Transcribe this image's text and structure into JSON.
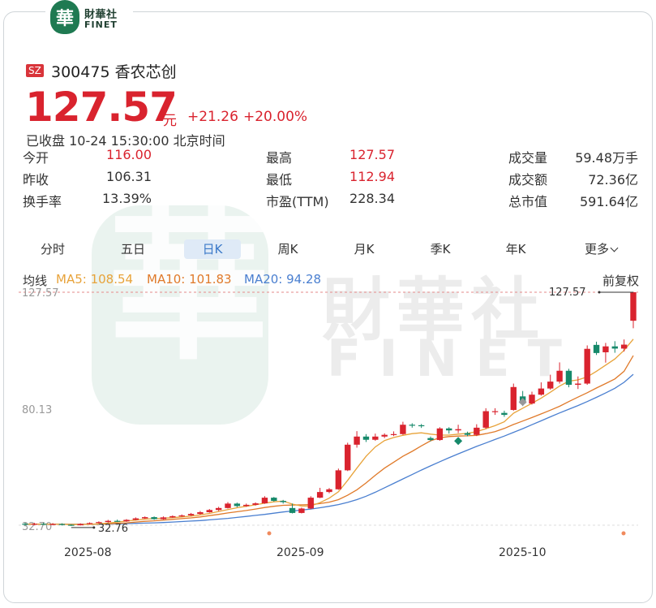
{
  "brand": {
    "mark": "華",
    "name_cn": "財華社",
    "name_en": "FINET",
    "watermark_cn": "財華社",
    "watermark_en": "FINET"
  },
  "stock": {
    "exchange": "SZ",
    "code": "300475",
    "name": "香农芯创",
    "title": "300475 香农芯创"
  },
  "quote": {
    "price": "127.57",
    "unit": "元",
    "change": "+21.26",
    "change_pct": "+20.00%",
    "status": "已收盘 10-24 15:30:00 北京时间"
  },
  "stats": {
    "col1": [
      {
        "label": "今开",
        "value": "116.00"
      },
      {
        "label": "昨收",
        "value": "106.31"
      },
      {
        "label": "换手率",
        "value": "13.39%"
      }
    ],
    "col2": [
      {
        "label": "最高",
        "value": "127.57"
      },
      {
        "label": "最低",
        "value": "112.94"
      },
      {
        "label": "市盈(TTM)",
        "value": "228.34"
      }
    ],
    "col3": [
      {
        "label": "成交量",
        "value": "59.48万手"
      },
      {
        "label": "成交额",
        "value": "72.36亿"
      },
      {
        "label": "总市值",
        "value": "591.64亿"
      }
    ]
  },
  "tabs": [
    "分时",
    "五日",
    "日K",
    "周K",
    "月K",
    "季K",
    "年K",
    "更多"
  ],
  "active_tab": "日K",
  "ma": {
    "label": "均线",
    "ma5": "MA5: 108.54",
    "ma10": "MA10: 101.83",
    "ma20": "MA20: 94.28",
    "adjust": "前复权"
  },
  "colors": {
    "up": "#d9232e",
    "down": "#16896a",
    "ma5": "#e8a33a",
    "ma10": "#e07a2a",
    "ma20": "#4a7fd0"
  },
  "chart_data": {
    "type": "candlestick",
    "y_ticks": [
      "127.57",
      "80.13",
      "32.70"
    ],
    "x_ticks": [
      "2025-08",
      "2025-09",
      "2025-10"
    ],
    "high_marker": "127.57",
    "low_marker": "32.76",
    "ylim": [
      32.7,
      127.57
    ],
    "candles": [
      {
        "o": 33.6,
        "c": 33.3,
        "h": 34.0,
        "l": 33.0
      },
      {
        "o": 33.3,
        "c": 33.6,
        "h": 34.0,
        "l": 33.0
      },
      {
        "o": 33.6,
        "c": 33.4,
        "h": 34.0,
        "l": 33.1
      },
      {
        "o": 33.4,
        "c": 33.5,
        "h": 33.9,
        "l": 33.1
      },
      {
        "o": 33.5,
        "c": 33.2,
        "h": 33.8,
        "l": 32.9
      },
      {
        "o": 33.2,
        "c": 33.0,
        "h": 33.4,
        "l": 32.76
      },
      {
        "o": 33.0,
        "c": 33.5,
        "h": 33.8,
        "l": 32.9
      },
      {
        "o": 33.5,
        "c": 33.9,
        "h": 34.2,
        "l": 33.3
      },
      {
        "o": 33.9,
        "c": 34.3,
        "h": 34.6,
        "l": 33.7
      },
      {
        "o": 34.3,
        "c": 34.8,
        "h": 35.2,
        "l": 34.0
      },
      {
        "o": 34.8,
        "c": 34.6,
        "h": 35.3,
        "l": 34.3
      },
      {
        "o": 34.6,
        "c": 35.2,
        "h": 35.5,
        "l": 34.4
      },
      {
        "o": 35.2,
        "c": 35.8,
        "h": 36.2,
        "l": 35.0
      },
      {
        "o": 35.8,
        "c": 36.3,
        "h": 36.6,
        "l": 35.6
      },
      {
        "o": 36.3,
        "c": 35.5,
        "h": 36.6,
        "l": 35.2
      },
      {
        "o": 35.5,
        "c": 36.2,
        "h": 36.6,
        "l": 35.3
      },
      {
        "o": 36.2,
        "c": 36.7,
        "h": 37.0,
        "l": 36.0
      },
      {
        "o": 36.7,
        "c": 37.0,
        "h": 37.4,
        "l": 36.4
      },
      {
        "o": 37.0,
        "c": 37.6,
        "h": 38.0,
        "l": 36.8
      },
      {
        "o": 37.6,
        "c": 38.3,
        "h": 38.8,
        "l": 37.3
      },
      {
        "o": 38.3,
        "c": 39.2,
        "h": 39.6,
        "l": 38.1
      },
      {
        "o": 39.2,
        "c": 40.0,
        "h": 40.5,
        "l": 38.8
      },
      {
        "o": 40.0,
        "c": 41.8,
        "h": 42.4,
        "l": 39.8
      },
      {
        "o": 41.8,
        "c": 40.8,
        "h": 42.2,
        "l": 40.3
      },
      {
        "o": 40.8,
        "c": 41.3,
        "h": 41.8,
        "l": 40.5
      },
      {
        "o": 41.3,
        "c": 41.9,
        "h": 42.3,
        "l": 41.0
      },
      {
        "o": 41.9,
        "c": 44.2,
        "h": 44.8,
        "l": 41.7
      },
      {
        "o": 44.2,
        "c": 42.9,
        "h": 44.5,
        "l": 42.6
      },
      {
        "o": 42.9,
        "c": 42.4,
        "h": 43.3,
        "l": 41.8
      },
      {
        "o": 40.0,
        "c": 38.0,
        "h": 41.8,
        "l": 37.8
      },
      {
        "o": 38.0,
        "c": 39.8,
        "h": 40.2,
        "l": 37.8
      },
      {
        "o": 39.8,
        "c": 44.2,
        "h": 44.8,
        "l": 39.5
      },
      {
        "o": 44.2,
        "c": 46.5,
        "h": 48.2,
        "l": 44.0
      },
      {
        "o": 46.5,
        "c": 47.6,
        "h": 48.1,
        "l": 46.0
      },
      {
        "o": 47.6,
        "c": 55.3,
        "h": 56.0,
        "l": 47.4
      },
      {
        "o": 55.3,
        "c": 65.7,
        "h": 66.5,
        "l": 55.0
      },
      {
        "o": 65.7,
        "c": 69.0,
        "h": 71.2,
        "l": 64.5
      },
      {
        "o": 69.0,
        "c": 67.7,
        "h": 70.0,
        "l": 66.8
      },
      {
        "o": 67.7,
        "c": 69.0,
        "h": 70.2,
        "l": 67.3
      },
      {
        "o": 69.0,
        "c": 69.7,
        "h": 70.3,
        "l": 68.4
      },
      {
        "o": 69.7,
        "c": 70.0,
        "h": 71.1,
        "l": 69.2
      },
      {
        "o": 70.0,
        "c": 73.8,
        "h": 75.0,
        "l": 69.7
      },
      {
        "o": 73.8,
        "c": 73.6,
        "h": 74.4,
        "l": 72.6
      },
      {
        "o": 73.6,
        "c": 73.2,
        "h": 74.1,
        "l": 72.5
      },
      {
        "o": 68.4,
        "c": 67.6,
        "h": 69.0,
        "l": 67.1
      },
      {
        "o": 67.6,
        "c": 72.3,
        "h": 72.8,
        "l": 67.3
      },
      {
        "o": 72.3,
        "c": 71.5,
        "h": 72.8,
        "l": 70.2
      },
      {
        "o": 71.5,
        "c": 72.0,
        "h": 73.8,
        "l": 70.4
      },
      {
        "o": 70.4,
        "c": 69.7,
        "h": 71.0,
        "l": 69.1
      },
      {
        "o": 69.7,
        "c": 72.6,
        "h": 74.0,
        "l": 69.2
      },
      {
        "o": 72.6,
        "c": 79.3,
        "h": 80.5,
        "l": 72.1
      },
      {
        "o": 79.3,
        "c": 79.3,
        "h": 80.5,
        "l": 77.8
      },
      {
        "o": 78.6,
        "c": 77.8,
        "h": 79.5,
        "l": 77.0
      },
      {
        "o": 79.8,
        "c": 89.1,
        "h": 90.5,
        "l": 79.5
      },
      {
        "o": 85.3,
        "c": 82.4,
        "h": 87.5,
        "l": 81.4
      },
      {
        "o": 82.4,
        "c": 86.0,
        "h": 87.2,
        "l": 82.0
      },
      {
        "o": 86.0,
        "c": 88.5,
        "h": 91.0,
        "l": 85.6
      },
      {
        "o": 88.5,
        "c": 91.3,
        "h": 94.1,
        "l": 88.0
      },
      {
        "o": 91.3,
        "c": 95.7,
        "h": 99.1,
        "l": 90.5
      },
      {
        "o": 95.7,
        "c": 90.0,
        "h": 96.5,
        "l": 89.0
      },
      {
        "o": 90.0,
        "c": 90.5,
        "h": 93.4,
        "l": 88.3
      },
      {
        "o": 90.5,
        "c": 104.6,
        "h": 106.0,
        "l": 90.0
      },
      {
        "o": 106.2,
        "c": 102.9,
        "h": 107.5,
        "l": 102.1
      },
      {
        "o": 103.2,
        "c": 105.6,
        "h": 107.0,
        "l": 99.0
      },
      {
        "o": 105.6,
        "c": 104.7,
        "h": 107.7,
        "l": 103.0
      },
      {
        "o": 104.7,
        "c": 106.31,
        "h": 108.4,
        "l": 103.5
      },
      {
        "o": 116.0,
        "c": 127.57,
        "h": 127.57,
        "l": 112.94
      }
    ],
    "ma5": [
      33.4,
      33.5,
      33.4,
      33.4,
      33.4,
      33.3,
      33.3,
      33.4,
      33.6,
      33.9,
      34.3,
      34.7,
      35.1,
      35.5,
      35.7,
      35.9,
      36.1,
      36.4,
      36.7,
      37.2,
      37.8,
      38.6,
      39.4,
      40.1,
      40.7,
      41.3,
      42.0,
      42.5,
      42.8,
      41.6,
      40.8,
      40.8,
      42.2,
      44.0,
      46.6,
      51.2,
      56.2,
      61.0,
      64.8,
      67.4,
      68.6,
      69.5,
      70.2,
      70.5,
      70.0,
      69.6,
      69.6,
      70.0,
      70.3,
      71.0,
      72.2,
      73.4,
      75.0,
      78.5,
      80.5,
      82.5,
      84.6,
      87.0,
      89.5,
      91.5,
      92.0,
      93.2,
      95.5,
      98.0,
      100.5,
      104.0,
      108.54
    ],
    "ma10": [
      33.4,
      33.5,
      33.4,
      33.4,
      33.4,
      33.4,
      33.4,
      33.4,
      33.5,
      33.6,
      33.8,
      34.0,
      34.3,
      34.6,
      34.8,
      35.1,
      35.4,
      35.7,
      36.0,
      36.4,
      36.9,
      37.4,
      38.0,
      38.5,
      39.0,
      39.6,
      40.2,
      40.7,
      41.1,
      41.2,
      41.3,
      41.4,
      41.8,
      42.4,
      43.4,
      45.2,
      47.4,
      50.2,
      53.3,
      56.2,
      58.6,
      61.0,
      63.0,
      65.2,
      67.3,
      68.5,
      69.0,
      69.2,
      69.3,
      69.5,
      70.2,
      71.0,
      72.3,
      73.9,
      75.3,
      76.7,
      78.2,
      79.7,
      81.3,
      83.2,
      85.0,
      86.8,
      88.7,
      90.5,
      92.4,
      95.5,
      101.83
    ],
    "ma20": [
      33.4,
      33.4,
      33.4,
      33.4,
      33.4,
      33.4,
      33.4,
      33.4,
      33.4,
      33.5,
      33.6,
      33.7,
      33.8,
      33.9,
      34.0,
      34.1,
      34.3,
      34.5,
      34.7,
      34.9,
      35.2,
      35.5,
      35.8,
      36.2,
      36.6,
      37.0,
      37.4,
      37.9,
      38.4,
      38.8,
      39.2,
      39.6,
      40.1,
      40.7,
      41.4,
      42.3,
      43.4,
      44.8,
      46.4,
      48.2,
      50.0,
      51.8,
      53.6,
      55.4,
      57.1,
      58.8,
      60.4,
      62.0,
      63.5,
      65.0,
      66.4,
      67.8,
      69.2,
      70.7,
      72.2,
      73.8,
      75.4,
      77.0,
      78.6,
      80.1,
      81.6,
      83.2,
      84.9,
      86.7,
      88.6,
      91.0,
      94.28
    ]
  }
}
